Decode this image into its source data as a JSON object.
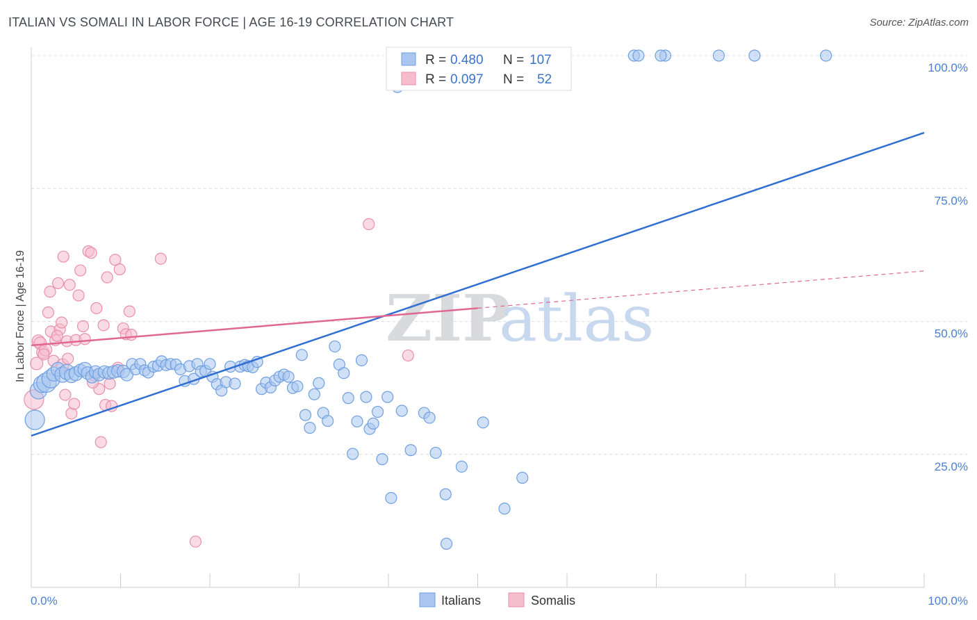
{
  "title": "ITALIAN VS SOMALI IN LABOR FORCE | AGE 16-19 CORRELATION CHART",
  "source": "Source: ZipAtlas.com",
  "watermark": {
    "zip": "ZIP",
    "atlas": "atlas"
  },
  "colors": {
    "italians_fill": "#a9c6f0",
    "italians_stroke": "#6f9fe0",
    "italians_line": "#2f6fd1",
    "somalis_fill": "#f5bccd",
    "somalis_stroke": "#e98fab",
    "somalis_line": "#e0678f",
    "grid": "#d8dce2",
    "axis_text": "#4a7fd1"
  },
  "legend": {
    "rows": [
      {
        "r_label": "R =",
        "r_value": "0.480",
        "n_label": "N =",
        "n_value": "107"
      },
      {
        "r_label": "R =",
        "r_value": "0.097",
        "n_label": "N =",
        "n_value": "52"
      }
    ]
  },
  "chart_data": {
    "type": "scatter",
    "title": "ITALIAN VS SOMALI IN LABOR FORCE | AGE 16-19 CORRELATION CHART",
    "xlabel": "",
    "ylabel": "In Labor Force | Age 16-19",
    "x_ticks": [
      "0.0%",
      "100.0%"
    ],
    "y_ticks": [
      "25.0%",
      "50.0%",
      "75.0%",
      "100.0%"
    ],
    "xlim": [
      0,
      100
    ],
    "ylim": [
      0,
      102
    ],
    "grid": true,
    "legend_position": "bottom",
    "series": [
      {
        "name": "Italians",
        "trend": {
          "x": [
            0,
            100
          ],
          "y": [
            28.5,
            85.5
          ]
        },
        "points": [
          [
            0.4,
            31.5,
            14
          ],
          [
            0.8,
            37,
            12
          ],
          [
            1.2,
            38.2,
            12
          ],
          [
            1.7,
            38.5,
            14
          ],
          [
            2.2,
            39.2,
            13
          ],
          [
            2.5,
            40.1,
            10
          ],
          [
            3,
            41,
            10
          ],
          [
            3.5,
            40,
            11
          ],
          [
            4,
            40.5,
            11
          ],
          [
            4.5,
            39.8,
            10
          ],
          [
            5,
            40.2,
            10
          ],
          [
            5.5,
            40.8,
            9
          ],
          [
            6,
            41,
            10
          ],
          [
            6.3,
            40.3,
            9
          ],
          [
            6.8,
            39.6,
            9
          ],
          [
            7.2,
            40.5,
            9
          ],
          [
            7.6,
            40,
            9
          ],
          [
            8.2,
            40.5,
            9
          ],
          [
            8.7,
            40.3,
            9
          ],
          [
            9.2,
            40.5,
            9
          ],
          [
            9.7,
            40.7,
            9
          ],
          [
            10.3,
            40.6,
            9
          ],
          [
            10.7,
            40,
            9
          ],
          [
            11.3,
            42,
            8
          ],
          [
            11.7,
            41,
            8
          ],
          [
            12.2,
            42,
            8
          ],
          [
            12.7,
            40.8,
            8
          ],
          [
            13.1,
            40.4,
            8
          ],
          [
            13.7,
            41.5,
            8
          ],
          [
            14.2,
            41.7,
            8
          ],
          [
            14.6,
            42.5,
            8
          ],
          [
            15.1,
            41.8,
            8
          ],
          [
            15.6,
            42,
            8
          ],
          [
            16.2,
            41.9,
            8
          ],
          [
            16.7,
            41,
            8
          ],
          [
            17.2,
            38.8,
            8
          ],
          [
            17.7,
            41.6,
            8
          ],
          [
            18.2,
            39.2,
            8
          ],
          [
            18.6,
            42,
            8
          ],
          [
            19,
            40.6,
            8
          ],
          [
            19.5,
            40.7,
            8
          ],
          [
            20,
            42,
            8
          ],
          [
            20.3,
            39.6,
            8
          ],
          [
            20.8,
            38.2,
            8
          ],
          [
            21.3,
            37,
            8
          ],
          [
            21.8,
            38.6,
            8
          ],
          [
            22.3,
            41.5,
            8
          ],
          [
            22.8,
            38.3,
            8
          ],
          [
            23.4,
            41.5,
            8
          ],
          [
            23.9,
            41.8,
            8
          ],
          [
            24.3,
            41.6,
            8
          ],
          [
            24.8,
            41.4,
            8
          ],
          [
            25.3,
            42.4,
            8
          ],
          [
            25.8,
            37.3,
            8
          ],
          [
            26.3,
            38.5,
            8
          ],
          [
            26.8,
            37.6,
            8
          ],
          [
            27.3,
            38.9,
            8
          ],
          [
            27.8,
            39.6,
            8
          ],
          [
            28.3,
            40,
            8
          ],
          [
            28.8,
            39.6,
            8
          ],
          [
            29.3,
            37.5,
            8
          ],
          [
            29.8,
            37.8,
            8
          ],
          [
            30.3,
            43.7,
            8
          ],
          [
            30.7,
            32.4,
            8
          ],
          [
            31.2,
            30,
            8
          ],
          [
            31.7,
            36.3,
            8
          ],
          [
            32.2,
            38.4,
            8
          ],
          [
            32.7,
            32.8,
            8
          ],
          [
            33.2,
            31.3,
            8
          ],
          [
            34,
            45.3,
            8
          ],
          [
            34.5,
            41.9,
            8
          ],
          [
            35,
            40.3,
            8
          ],
          [
            35.5,
            35.6,
            8
          ],
          [
            36,
            25.1,
            8
          ],
          [
            36.5,
            31.2,
            8
          ],
          [
            37,
            42.7,
            8
          ],
          [
            37.5,
            35.8,
            8
          ],
          [
            37.9,
            29.8,
            8
          ],
          [
            38.3,
            30.8,
            8
          ],
          [
            38.8,
            33,
            8
          ],
          [
            39.3,
            24.1,
            8
          ],
          [
            39.9,
            35.8,
            8
          ],
          [
            40.3,
            16.8,
            8
          ],
          [
            41.5,
            33.2,
            8
          ],
          [
            42.5,
            25.8,
            8
          ],
          [
            44,
            32.8,
            8
          ],
          [
            44.6,
            31.9,
            8
          ],
          [
            45.3,
            25.3,
            8
          ],
          [
            46.4,
            17.5,
            8
          ],
          [
            46.5,
            8.2,
            8
          ],
          [
            48.2,
            22.7,
            8
          ],
          [
            50.6,
            31,
            8
          ],
          [
            53,
            14.8,
            8
          ],
          [
            55,
            20.6,
            8
          ],
          [
            41,
            94.1,
            8
          ],
          [
            44,
            100,
            8
          ],
          [
            52,
            100,
            8
          ],
          [
            67.5,
            100,
            8
          ],
          [
            71,
            100,
            8
          ],
          [
            77,
            100,
            8
          ],
          [
            81,
            100,
            8
          ],
          [
            89,
            100,
            8
          ],
          [
            42,
            100,
            8
          ],
          [
            50,
            100,
            8
          ],
          [
            53,
            100,
            8
          ],
          [
            55,
            100,
            8
          ],
          [
            68,
            100,
            8
          ],
          [
            70.5,
            100,
            8
          ]
        ]
      },
      {
        "name": "Somalis",
        "trend": {
          "x": [
            0,
            50
          ],
          "y": [
            45.5,
            52.5
          ]
        },
        "trend_dashed": {
          "x": [
            50,
            100
          ],
          "y": [
            52.5,
            59.5
          ]
        },
        "points": [
          [
            0.3,
            35.3,
            14
          ],
          [
            0.6,
            42.1,
            9
          ],
          [
            0.8,
            46.3,
            9
          ],
          [
            1,
            45.9,
            9
          ],
          [
            1.3,
            44.2,
            9
          ],
          [
            1.6,
            44.7,
            9
          ],
          [
            1.9,
            51.7,
            8
          ],
          [
            2.1,
            55.6,
            8
          ],
          [
            2.2,
            48.1,
            8
          ],
          [
            2.5,
            42.6,
            8
          ],
          [
            2.7,
            46.5,
            8
          ],
          [
            3,
            57.2,
            8
          ],
          [
            3.2,
            48.5,
            8
          ],
          [
            3.4,
            49.8,
            8
          ],
          [
            3.6,
            62.2,
            8
          ],
          [
            3.8,
            36.2,
            8
          ],
          [
            4,
            46.3,
            8
          ],
          [
            4.3,
            56.9,
            8
          ],
          [
            4.5,
            32.7,
            8
          ],
          [
            4.8,
            34.5,
            8
          ],
          [
            5,
            46.5,
            8
          ],
          [
            5.3,
            54.9,
            8
          ],
          [
            5.5,
            59.6,
            8
          ],
          [
            5.8,
            49.1,
            8
          ],
          [
            6,
            46.7,
            8
          ],
          [
            6.4,
            63.2,
            8
          ],
          [
            6.7,
            62.9,
            8
          ],
          [
            7.1,
            39.8,
            8
          ],
          [
            7.3,
            52.5,
            8
          ],
          [
            7.6,
            37.3,
            8
          ],
          [
            7.8,
            27.3,
            8
          ],
          [
            8.1,
            49.3,
            8
          ],
          [
            8.3,
            34.3,
            8
          ],
          [
            8.5,
            58.3,
            8
          ],
          [
            8.8,
            38.3,
            8
          ],
          [
            9,
            34.1,
            8
          ],
          [
            9.4,
            61.6,
            8
          ],
          [
            9.7,
            41.3,
            8
          ],
          [
            9.9,
            59.8,
            8
          ],
          [
            10.3,
            48.7,
            8
          ],
          [
            10.6,
            47.6,
            8
          ],
          [
            11,
            51.9,
            8
          ],
          [
            11.2,
            47.5,
            8
          ],
          [
            14.5,
            61.8,
            8
          ],
          [
            18.4,
            8.6,
            8
          ],
          [
            37.8,
            68.3,
            8
          ],
          [
            42.2,
            43.6,
            8
          ],
          [
            3.5,
            41.8,
            9
          ],
          [
            4.1,
            43,
            8
          ],
          [
            6.9,
            38.5,
            8
          ],
          [
            2.9,
            47.3,
            8
          ],
          [
            1.4,
            43.8,
            8
          ]
        ]
      }
    ]
  }
}
